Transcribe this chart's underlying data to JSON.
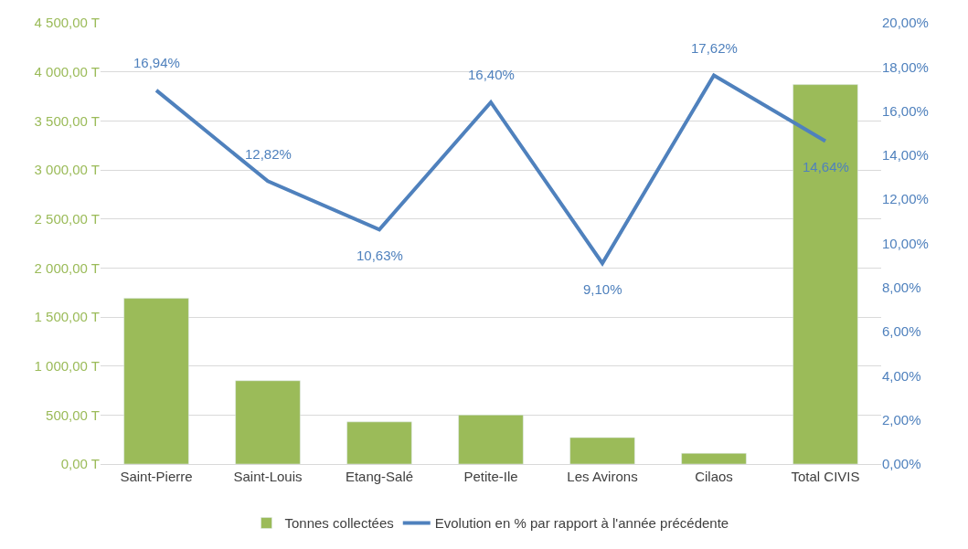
{
  "chart_data": {
    "type": "bar",
    "categories": [
      "Saint-Pierre",
      "Saint-Louis",
      "Etang-Salé",
      "Petite-Ile",
      "Les Avirons",
      "Cilaos",
      "Total CIVIS"
    ],
    "series": [
      {
        "name": "Tonnes collectées",
        "color": "#9bbb59",
        "values": [
          1690,
          850,
          430,
          500,
          270,
          110,
          3870
        ]
      },
      {
        "name": "Evolution en % par rapport à l'année précédente",
        "type": "line",
        "axis": "y2",
        "color": "#4f81bd",
        "values": [
          16.94,
          12.82,
          10.63,
          16.4,
          9.1,
          17.62,
          14.64
        ],
        "value_labels": [
          "16,94%",
          "12,82%",
          "10,63%",
          "16,40%",
          "9,10%",
          "17,62%",
          "14,64%"
        ]
      }
    ],
    "ylim": [
      0,
      4500
    ],
    "yticks": [
      {
        "value": 0,
        "label": "0,00 T"
      },
      {
        "value": 500,
        "label": "500,00 T"
      },
      {
        "value": 1000,
        "label": "1 000,00 T"
      },
      {
        "value": 1500,
        "label": "1 500,00 T"
      },
      {
        "value": 2000,
        "label": "2 000,00 T"
      },
      {
        "value": 2500,
        "label": "2 500,00 T"
      },
      {
        "value": 3000,
        "label": "3 000,00 T"
      },
      {
        "value": 3500,
        "label": "3 500,00 T"
      },
      {
        "value": 4000,
        "label": "4 000,00 T"
      },
      {
        "value": 4500,
        "label": "4 500,00 T"
      }
    ],
    "y2lim": [
      0,
      20
    ],
    "y2ticks": [
      {
        "value": 0,
        "label": "0,00%"
      },
      {
        "value": 2,
        "label": "2,00%"
      },
      {
        "value": 4,
        "label": "4,00%"
      },
      {
        "value": 6,
        "label": "6,00%"
      },
      {
        "value": 8,
        "label": "8,00%"
      },
      {
        "value": 10,
        "label": "10,00%"
      },
      {
        "value": 12,
        "label": "12,00%"
      },
      {
        "value": 14,
        "label": "14,00%"
      },
      {
        "value": 16,
        "label": "16,00%"
      },
      {
        "value": 18,
        "label": "18,00%"
      },
      {
        "value": 20,
        "label": "20,00%"
      }
    ],
    "grid": "y",
    "legend": "bottom",
    "marker": "none",
    "line_style": "solid"
  }
}
